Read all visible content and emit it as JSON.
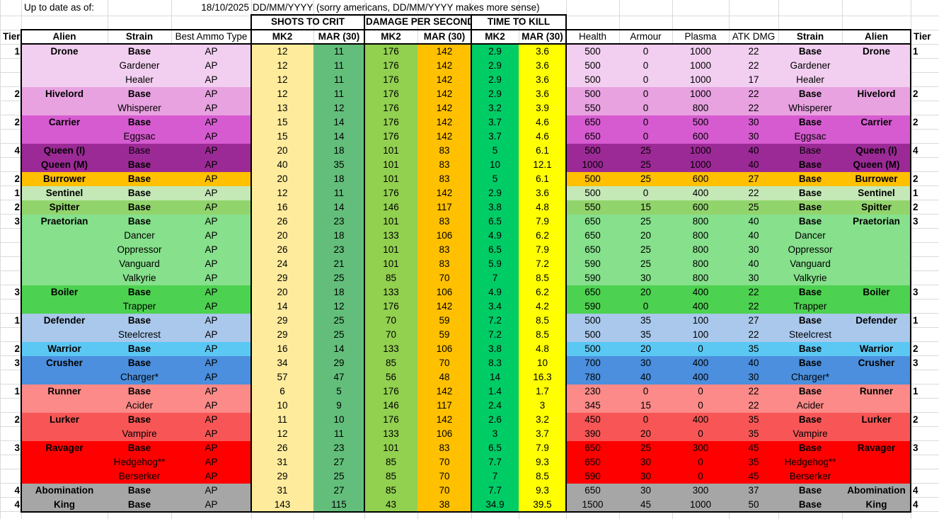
{
  "meta": {
    "label": "Up to date as of:",
    "date": "18/10/2025",
    "format": "DD/MM/YYYY",
    "note": "(sorry americans, DD/MM/YYYY makes more sense)"
  },
  "groups": {
    "shots": "SHOTS TO CRIT",
    "dps": "DAMAGE PER SECOND",
    "ttk": "TIME TO KILL"
  },
  "headers": {
    "tier": "Tier",
    "alien": "Alien",
    "strain": "Strain",
    "ammo": "Best Ammo Type",
    "mk2": "MK2",
    "mar": "MAR (30)",
    "health": "Health",
    "armour": "Armour",
    "plasma": "Plasma",
    "atk": "ATK DMG"
  },
  "colors": {
    "shots_mk2": "#ffeb9c",
    "shots_mar": "#63be7b",
    "dps_mk2": "#92d050",
    "dps_mar": "#ffc000",
    "ttk_mk2": "#00cc66",
    "ttk_mar": "#ffff00"
  },
  "rows": [
    {
      "tier": "1",
      "alien": "Drone",
      "strain": "Base",
      "ammo": "AP",
      "s1": "12",
      "s2": "11",
      "d1": "176",
      "d2": "142",
      "t1": "2.9",
      "t2": "3.6",
      "hp": "500",
      "ar": "0",
      "pl": "1000",
      "atk": "22",
      "bold": true,
      "color": "#f2cff0"
    },
    {
      "tier": "",
      "alien": "",
      "strain": "Gardener",
      "ammo": "AP",
      "s1": "12",
      "s2": "11",
      "d1": "176",
      "d2": "142",
      "t1": "2.9",
      "t2": "3.6",
      "hp": "500",
      "ar": "0",
      "pl": "1000",
      "atk": "22",
      "bold": false,
      "color": "#f2cff0"
    },
    {
      "tier": "",
      "alien": "",
      "strain": "Healer",
      "ammo": "AP",
      "s1": "12",
      "s2": "11",
      "d1": "176",
      "d2": "142",
      "t1": "2.9",
      "t2": "3.6",
      "hp": "500",
      "ar": "0",
      "pl": "1000",
      "atk": "17",
      "bold": false,
      "color": "#f2cff0"
    },
    {
      "tier": "2",
      "alien": "Hivelord",
      "strain": "Base",
      "ammo": "AP",
      "s1": "12",
      "s2": "11",
      "d1": "176",
      "d2": "142",
      "t1": "2.9",
      "t2": "3.6",
      "hp": "500",
      "ar": "0",
      "pl": "1000",
      "atk": "22",
      "bold": true,
      "color": "#e8a2e0"
    },
    {
      "tier": "",
      "alien": "",
      "strain": "Whisperer",
      "ammo": "AP",
      "s1": "13",
      "s2": "12",
      "d1": "176",
      "d2": "142",
      "t1": "3.2",
      "t2": "3.9",
      "hp": "550",
      "ar": "0",
      "pl": "800",
      "atk": "22",
      "bold": false,
      "color": "#e8a2e0"
    },
    {
      "tier": "2",
      "alien": "Carrier",
      "strain": "Base",
      "ammo": "AP",
      "s1": "15",
      "s2": "14",
      "d1": "176",
      "d2": "142",
      "t1": "3.7",
      "t2": "4.6",
      "hp": "650",
      "ar": "0",
      "pl": "500",
      "atk": "30",
      "bold": true,
      "color": "#d65bd0"
    },
    {
      "tier": "",
      "alien": "",
      "strain": "Eggsac",
      "ammo": "AP",
      "s1": "15",
      "s2": "14",
      "d1": "176",
      "d2": "142",
      "t1": "3.7",
      "t2": "4.6",
      "hp": "650",
      "ar": "0",
      "pl": "600",
      "atk": "30",
      "bold": false,
      "color": "#d65bd0"
    },
    {
      "tier": "4",
      "alien": "Queen (I)",
      "strain": "Base",
      "ammo": "AP",
      "s1": "20",
      "s2": "18",
      "d1": "101",
      "d2": "83",
      "t1": "5",
      "t2": "6.1",
      "hp": "500",
      "ar": "25",
      "pl": "1000",
      "atk": "40",
      "bold": false,
      "color": "#9c2a96"
    },
    {
      "tier": "",
      "alien": "Queen (M)",
      "strain": "Base",
      "ammo": "AP",
      "s1": "40",
      "s2": "35",
      "d1": "101",
      "d2": "83",
      "t1": "10",
      "t2": "12.1",
      "hp": "1000",
      "ar": "25",
      "pl": "1000",
      "atk": "40",
      "bold": true,
      "color": "#9c2a96"
    },
    {
      "tier": "2",
      "alien": "Burrower",
      "strain": "Base",
      "ammo": "AP",
      "s1": "20",
      "s2": "18",
      "d1": "101",
      "d2": "83",
      "t1": "5",
      "t2": "6.1",
      "hp": "500",
      "ar": "25",
      "pl": "600",
      "atk": "27",
      "bold": true,
      "color": "#ffc000"
    },
    {
      "tier": "1",
      "alien": "Sentinel",
      "strain": "Base",
      "ammo": "AP",
      "s1": "12",
      "s2": "11",
      "d1": "176",
      "d2": "142",
      "t1": "2.9",
      "t2": "3.6",
      "hp": "500",
      "ar": "0",
      "pl": "400",
      "atk": "22",
      "bold": true,
      "color": "#c5e8b7"
    },
    {
      "tier": "2",
      "alien": "Spitter",
      "strain": "Base",
      "ammo": "AP",
      "s1": "16",
      "s2": "14",
      "d1": "146",
      "d2": "117",
      "t1": "3.8",
      "t2": "4.8",
      "hp": "550",
      "ar": "15",
      "pl": "600",
      "atk": "25",
      "bold": true,
      "color": "#92d46c"
    },
    {
      "tier": "3",
      "alien": "Praetorian",
      "strain": "Base",
      "ammo": "AP",
      "s1": "26",
      "s2": "23",
      "d1": "101",
      "d2": "83",
      "t1": "6.5",
      "t2": "7.9",
      "hp": "650",
      "ar": "25",
      "pl": "800",
      "atk": "40",
      "bold": true,
      "color": "#86e08c"
    },
    {
      "tier": "",
      "alien": "",
      "strain": "Dancer",
      "ammo": "AP",
      "s1": "20",
      "s2": "18",
      "d1": "133",
      "d2": "106",
      "t1": "4.9",
      "t2": "6.2",
      "hp": "650",
      "ar": "20",
      "pl": "800",
      "atk": "40",
      "bold": false,
      "color": "#86e08c"
    },
    {
      "tier": "",
      "alien": "",
      "strain": "Oppressor",
      "ammo": "AP",
      "s1": "26",
      "s2": "23",
      "d1": "101",
      "d2": "83",
      "t1": "6.5",
      "t2": "7.9",
      "hp": "650",
      "ar": "25",
      "pl": "800",
      "atk": "30",
      "bold": false,
      "color": "#86e08c"
    },
    {
      "tier": "",
      "alien": "",
      "strain": "Vanguard",
      "ammo": "AP",
      "s1": "24",
      "s2": "21",
      "d1": "101",
      "d2": "83",
      "t1": "5.9",
      "t2": "7.2",
      "hp": "590",
      "ar": "25",
      "pl": "800",
      "atk": "40",
      "bold": false,
      "color": "#86e08c"
    },
    {
      "tier": "",
      "alien": "",
      "strain": "Valkyrie",
      "ammo": "AP",
      "s1": "29",
      "s2": "25",
      "d1": "85",
      "d2": "70",
      "t1": "7",
      "t2": "8.5",
      "hp": "590",
      "ar": "30",
      "pl": "800",
      "atk": "30",
      "bold": false,
      "color": "#86e08c"
    },
    {
      "tier": "3",
      "alien": "Boiler",
      "strain": "Base",
      "ammo": "AP",
      "s1": "20",
      "s2": "18",
      "d1": "133",
      "d2": "106",
      "t1": "4.9",
      "t2": "6.2",
      "hp": "650",
      "ar": "20",
      "pl": "400",
      "atk": "22",
      "bold": true,
      "color": "#4dd150"
    },
    {
      "tier": "",
      "alien": "",
      "strain": "Trapper",
      "ammo": "AP",
      "s1": "14",
      "s2": "12",
      "d1": "176",
      "d2": "142",
      "t1": "3.4",
      "t2": "4.2",
      "hp": "590",
      "ar": "0",
      "pl": "400",
      "atk": "22",
      "bold": false,
      "color": "#4dd150"
    },
    {
      "tier": "1",
      "alien": "Defender",
      "strain": "Base",
      "ammo": "AP",
      "s1": "29",
      "s2": "25",
      "d1": "70",
      "d2": "59",
      "t1": "7.2",
      "t2": "8.5",
      "hp": "500",
      "ar": "35",
      "pl": "100",
      "atk": "27",
      "bold": true,
      "color": "#a9c8ec"
    },
    {
      "tier": "",
      "alien": "",
      "strain": "Steelcrest",
      "ammo": "AP",
      "s1": "29",
      "s2": "25",
      "d1": "70",
      "d2": "59",
      "t1": "7.2",
      "t2": "8.5",
      "hp": "500",
      "ar": "35",
      "pl": "100",
      "atk": "22",
      "bold": false,
      "color": "#a9c8ec"
    },
    {
      "tier": "2",
      "alien": "Warrior",
      "strain": "Base",
      "ammo": "AP",
      "s1": "16",
      "s2": "14",
      "d1": "133",
      "d2": "106",
      "t1": "3.8",
      "t2": "4.8",
      "hp": "500",
      "ar": "20",
      "pl": "0",
      "atk": "35",
      "bold": true,
      "color": "#5bc8f4"
    },
    {
      "tier": "3",
      "alien": "Crusher",
      "strain": "Base",
      "ammo": "AP",
      "s1": "34",
      "s2": "29",
      "d1": "85",
      "d2": "70",
      "t1": "8.3",
      "t2": "10",
      "hp": "700",
      "ar": "30",
      "pl": "400",
      "atk": "40",
      "bold": true,
      "color": "#4b8fde"
    },
    {
      "tier": "",
      "alien": "",
      "strain": "Charger*",
      "ammo": "AP",
      "s1": "57",
      "s2": "47",
      "d1": "56",
      "d2": "48",
      "t1": "14",
      "t2": "16.3",
      "hp": "780",
      "ar": "40",
      "pl": "400",
      "atk": "30",
      "bold": false,
      "color": "#4b8fde"
    },
    {
      "tier": "1",
      "alien": "Runner",
      "strain": "Base",
      "ammo": "AP",
      "s1": "6",
      "s2": "5",
      "d1": "176",
      "d2": "142",
      "t1": "1.4",
      "t2": "1.7",
      "hp": "230",
      "ar": "0",
      "pl": "0",
      "atk": "22",
      "bold": true,
      "color": "#fb8a88"
    },
    {
      "tier": "",
      "alien": "",
      "strain": "Acider",
      "ammo": "AP",
      "s1": "10",
      "s2": "9",
      "d1": "146",
      "d2": "117",
      "t1": "2.4",
      "t2": "3",
      "hp": "345",
      "ar": "15",
      "pl": "0",
      "atk": "22",
      "bold": false,
      "color": "#fb8a88"
    },
    {
      "tier": "2",
      "alien": "Lurker",
      "strain": "Base",
      "ammo": "AP",
      "s1": "11",
      "s2": "10",
      "d1": "176",
      "d2": "142",
      "t1": "2.6",
      "t2": "3.2",
      "hp": "450",
      "ar": "0",
      "pl": "400",
      "atk": "35",
      "bold": true,
      "color": "#f85656"
    },
    {
      "tier": "",
      "alien": "",
      "strain": "Vampire",
      "ammo": "AP",
      "s1": "12",
      "s2": "11",
      "d1": "133",
      "d2": "106",
      "t1": "3",
      "t2": "3.7",
      "hp": "390",
      "ar": "20",
      "pl": "0",
      "atk": "35",
      "bold": false,
      "color": "#f85656"
    },
    {
      "tier": "3",
      "alien": "Ravager",
      "strain": "Base",
      "ammo": "AP",
      "s1": "26",
      "s2": "23",
      "d1": "101",
      "d2": "83",
      "t1": "6.5",
      "t2": "7.9",
      "hp": "650",
      "ar": "25",
      "pl": "300",
      "atk": "45",
      "bold": true,
      "color": "#ff0000"
    },
    {
      "tier": "",
      "alien": "",
      "strain": "Hedgehog**",
      "ammo": "AP",
      "s1": "31",
      "s2": "27",
      "d1": "85",
      "d2": "70",
      "t1": "7.7",
      "t2": "9.3",
      "hp": "650",
      "ar": "30",
      "pl": "0",
      "atk": "35",
      "bold": false,
      "color": "#ff0000"
    },
    {
      "tier": "",
      "alien": "",
      "strain": "Berserker",
      "ammo": "AP",
      "s1": "29",
      "s2": "25",
      "d1": "85",
      "d2": "70",
      "t1": "7",
      "t2": "8.5",
      "hp": "590",
      "ar": "30",
      "pl": "0",
      "atk": "45",
      "bold": false,
      "color": "#ff0000"
    },
    {
      "tier": "4",
      "alien": "Abomination",
      "strain": "Base",
      "ammo": "AP",
      "s1": "31",
      "s2": "27",
      "d1": "85",
      "d2": "70",
      "t1": "7.7",
      "t2": "9.3",
      "hp": "650",
      "ar": "30",
      "pl": "300",
      "atk": "37",
      "bold": true,
      "color": "#a6a6a6"
    },
    {
      "tier": "4",
      "alien": "King",
      "strain": "Base",
      "ammo": "AP",
      "s1": "143",
      "s2": "115",
      "d1": "43",
      "d2": "38",
      "t1": "34.9",
      "t2": "39.5",
      "hp": "1500",
      "ar": "45",
      "pl": "1000",
      "atk": "50",
      "bold": true,
      "color": "#a6a6a6"
    }
  ]
}
